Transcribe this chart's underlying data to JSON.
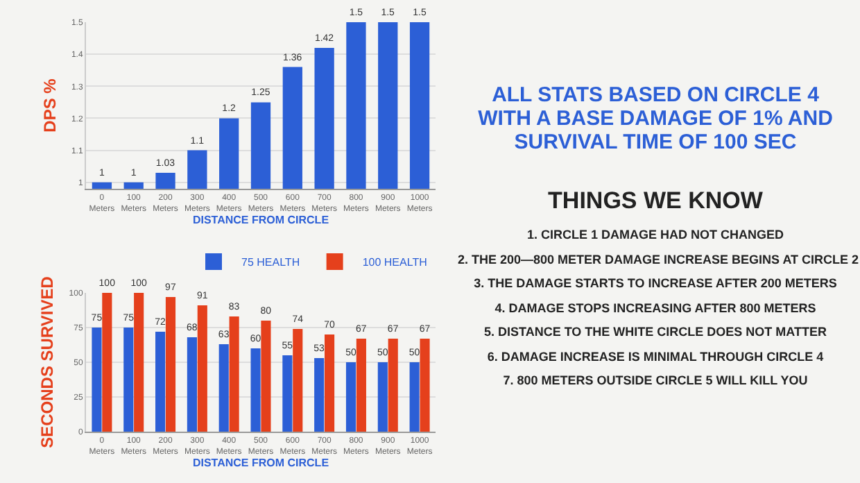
{
  "chart_data": [
    {
      "type": "bar",
      "ylabel": "DPS %",
      "xlabel": "DISTANCE FROM CIRCLE",
      "categories": [
        "0 Meters",
        "100 Meters",
        "200 Meters",
        "300 Meters",
        "400 Meters",
        "500 Meters",
        "600 Meters",
        "700 Meters",
        "800 Meters",
        "900 Meters",
        "1000 Meters"
      ],
      "series": [
        {
          "color": "#2c5fd6",
          "values": [
            1,
            1,
            1.03,
            1.1,
            1.2,
            1.25,
            1.36,
            1.42,
            1.5,
            1.5,
            1.5
          ]
        }
      ],
      "ylim": [
        0.98,
        1.5
      ],
      "yticks": [
        1,
        1.1,
        1.2,
        1.3,
        1.4,
        1.5
      ],
      "grid": "y",
      "data_labels": true,
      "legend": false
    },
    {
      "type": "bar",
      "ylabel": "SECONDS SURVIVED",
      "xlabel": "DISTANCE FROM CIRCLE",
      "categories": [
        "0 Meters",
        "100 Meters",
        "200 Meters",
        "300 Meters",
        "400 Meters",
        "500 Meters",
        "600 Meters",
        "700 Meters",
        "800 Meters",
        "900 Meters",
        "1000 Meters"
      ],
      "series": [
        {
          "name": "75 HEALTH",
          "color": "#2c5fd6",
          "values": [
            75,
            75,
            72,
            68,
            63,
            60,
            55,
            53,
            50,
            50,
            50
          ]
        },
        {
          "name": "100 HEALTH",
          "color": "#e5401c",
          "values": [
            100,
            100,
            97,
            91,
            83,
            80,
            74,
            70,
            67,
            67,
            67
          ]
        }
      ],
      "ylim": [
        0,
        100
      ],
      "yticks": [
        0,
        25,
        50,
        75,
        100
      ],
      "grid": "y",
      "data_labels": true,
      "legend": "top right"
    },
    {
      "type": "other",
      "title": "ALL STATS BASED ON CIRCLE 4 WITH A BASE DAMAGE OF 1% AND SURVIVAL TIME OF 100 SEC",
      "subtitle": "THINGS WE KNOW",
      "annotations": [
        "1. CIRCLE 1 DAMAGE HAD NOT CHANGED",
        "2. THE 200—800 METER DAMAGE INCREASE BEGINS AT CIRCLE 2",
        "3. THE DAMAGE STARTS TO INCREASE AFTER 200 METERS",
        "4. DAMAGE STOPS INCREASING AFTER 800 METERS",
        "5. DISTANCE TO THE WHITE CIRCLE DOES NOT MATTER",
        "6. DAMAGE INCREASE IS MINIMAL THROUGH CIRCLE 4",
        "7. 800 METERS OUTSIDE CIRCLE 5 WILL KILL YOU"
      ]
    }
  ]
}
